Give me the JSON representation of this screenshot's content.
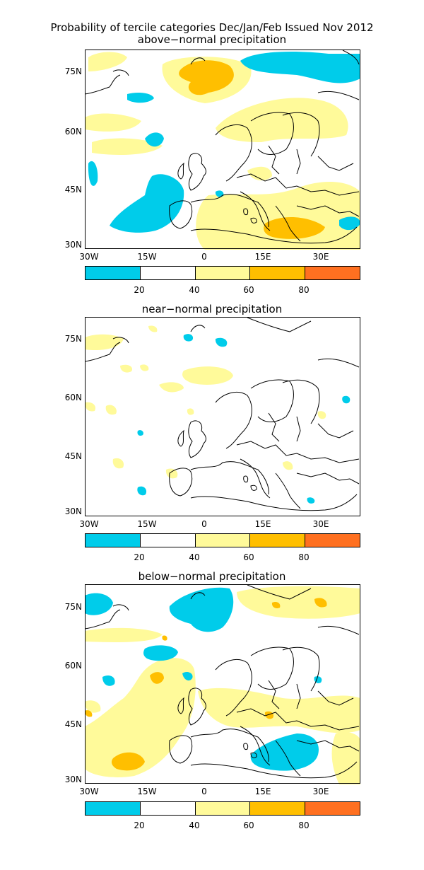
{
  "title": "Probability of tercile categories Dec/Jan/Feb Issued Nov 2012",
  "panels": [
    {
      "title": "above−normal precipitation"
    },
    {
      "title": "near−normal precipitation"
    },
    {
      "title": "below−normal precipitation"
    }
  ],
  "lat_labels": [
    "75N",
    "60N",
    "45N",
    "30N"
  ],
  "lon_labels": [
    "30W",
    "15W",
    "0",
    "15E",
    "30E"
  ],
  "colorbar": {
    "colors": [
      "#00ccea",
      "#ffffff",
      "#fffa9a",
      "#ffbf00",
      "#ff7020"
    ],
    "labels": [
      "20",
      "40",
      "60",
      "80"
    ]
  },
  "colors": {
    "cyan": "#00ccea",
    "light_yellow": "#fffa9a",
    "orange": "#ffbf00",
    "dark_orange": "#ff7020",
    "coast": "#000000"
  }
}
